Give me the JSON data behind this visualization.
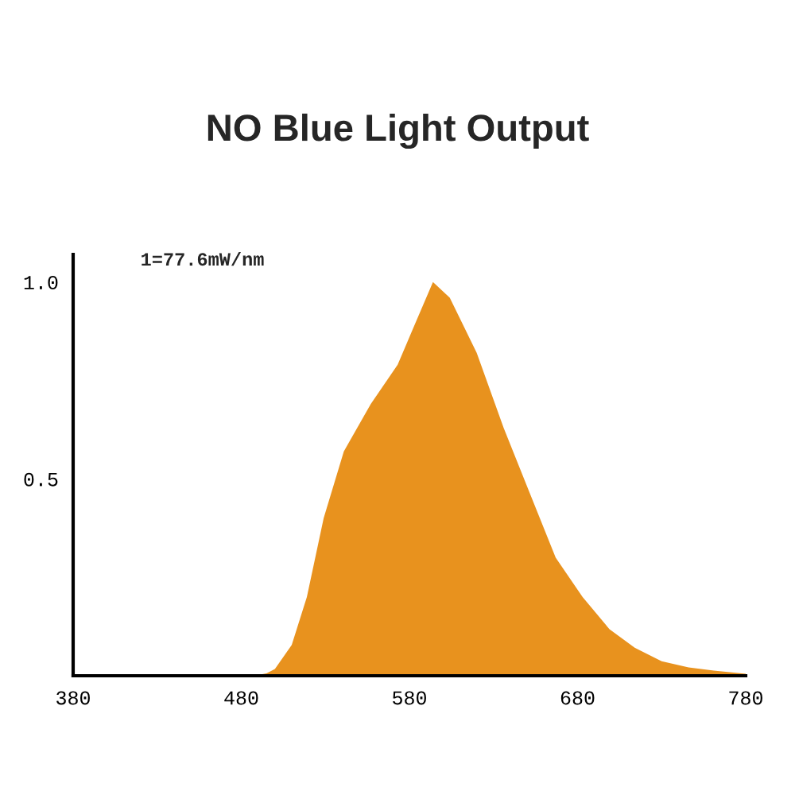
{
  "chart_data": {
    "type": "area",
    "title": "NO Blue Light Output",
    "annotations": [
      "1=77.6mW/nm"
    ],
    "x": [
      380,
      480,
      485,
      490,
      495,
      500,
      510,
      519,
      529,
      541,
      557,
      573,
      582,
      594,
      604,
      620,
      636,
      651,
      667,
      683,
      699,
      714,
      730,
      746,
      761,
      780
    ],
    "values": [
      0,
      0,
      0,
      0.002,
      0.006,
      0.017,
      0.078,
      0.2,
      0.4,
      0.57,
      0.69,
      0.79,
      0.88,
      1.0,
      0.96,
      0.82,
      0.63,
      0.47,
      0.3,
      0.2,
      0.118,
      0.071,
      0.037,
      0.021,
      0.013,
      0.005
    ],
    "color": "#e8921e",
    "xlim": [
      380,
      780
    ],
    "ylim": [
      0,
      1.07
    ],
    "xticks": [
      380,
      480,
      580,
      680,
      780
    ],
    "yticks": [
      {
        "value": 0.5,
        "label": "0.5"
      },
      {
        "value": 1.0,
        "label": "1.0"
      }
    ],
    "grid": false,
    "legend": false
  }
}
